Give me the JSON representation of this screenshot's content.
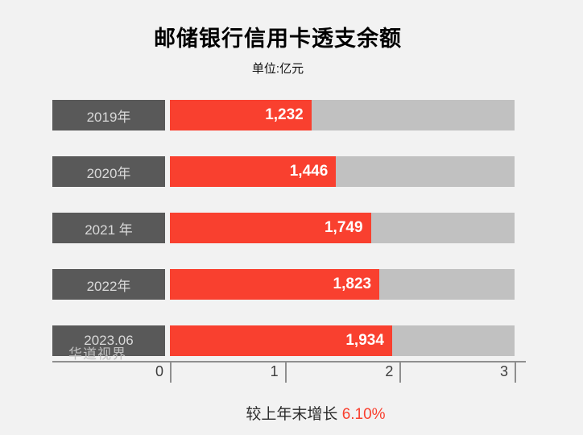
{
  "page": {
    "background": "#f2f2f2"
  },
  "chart_data": {
    "type": "bar",
    "orientation": "horizontal",
    "title": "邮储银行信用卡透支余额",
    "subtitle": "单位:亿元",
    "categories": [
      "2019年",
      "2020年",
      "2021 年",
      "2022年",
      "2023.06"
    ],
    "values": [
      1232,
      1446,
      1749,
      1823,
      1934
    ],
    "value_labels": [
      "1,232",
      "1,446",
      "1,749",
      "1,823",
      "1,934"
    ],
    "xlim": [
      0,
      3000
    ],
    "x_ticks": [
      "0",
      "1",
      "2",
      "3"
    ],
    "grid": false,
    "legend": "none",
    "colors": {
      "bar": "#f9402f",
      "track": "#c1c1c1",
      "category_box": "#595959",
      "category_text": "#d9d9d9",
      "value_text": "#ffffff",
      "background": "#f2f2f2",
      "axis": "#8f8f8f"
    },
    "footer": {
      "prefix": "较上年末增长 ",
      "highlight": "6.10%"
    },
    "watermark": "华道视界"
  }
}
